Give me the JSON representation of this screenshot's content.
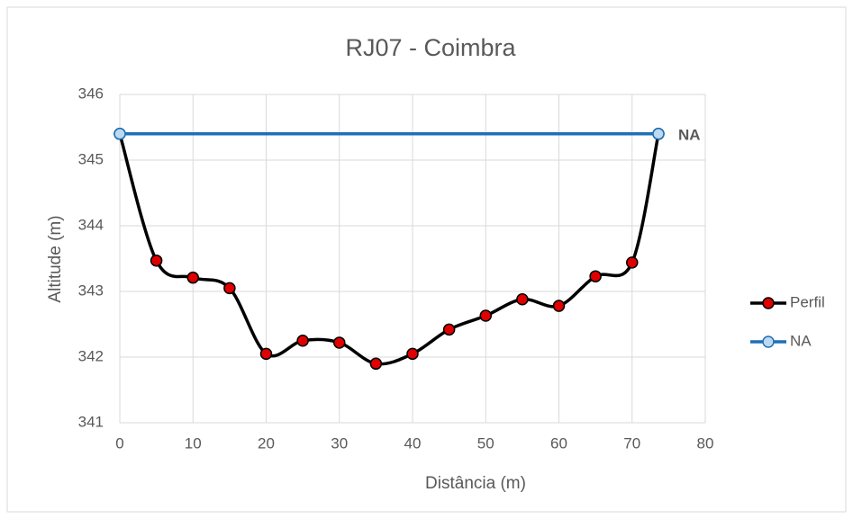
{
  "chart_data": {
    "type": "line",
    "title": "RJ07 - Coimbra",
    "x_label": "Distância (m)",
    "y_label": "Altitude (m)",
    "xlim": [
      0,
      80
    ],
    "xticks": [
      0,
      10,
      20,
      30,
      40,
      50,
      60,
      70,
      80
    ],
    "ylim": [
      341,
      346
    ],
    "yticks": [
      341,
      342,
      343,
      344,
      345,
      346
    ],
    "grid": true,
    "legend": "right",
    "smooth": true,
    "annotations": [
      {
        "text": "NA",
        "x": 73.6,
        "y": 345.4
      }
    ],
    "series": [
      {
        "name": "Perfil",
        "color": "#000000",
        "marker_color": "#e00000",
        "x": [
          0,
          5,
          10,
          15,
          20,
          25,
          30,
          35,
          40,
          45,
          50,
          55,
          60,
          65,
          70,
          73.6
        ],
        "values": [
          345.4,
          343.47,
          343.21,
          343.05,
          342.05,
          342.25,
          342.22,
          341.9,
          342.05,
          342.42,
          342.63,
          342.88,
          342.78,
          343.23,
          343.44,
          345.4
        ]
      },
      {
        "name": "NA",
        "color": "#1f6fb5",
        "marker_color": "#bcd9f2",
        "x": [
          0,
          73.6
        ],
        "values": [
          345.4,
          345.4
        ]
      }
    ]
  }
}
